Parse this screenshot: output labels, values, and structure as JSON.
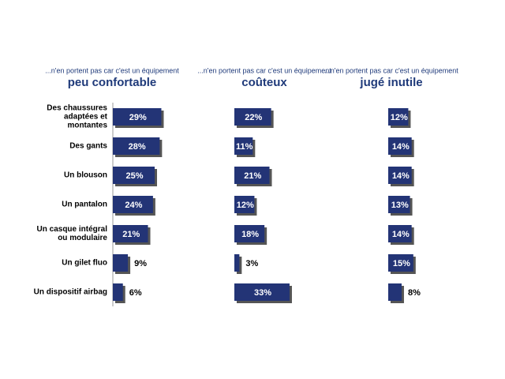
{
  "chart_data": [
    {
      "type": "bar",
      "subtitle": "...n'en portent pas car c'est un équipement",
      "title": "peu confortable",
      "categories": [
        "Des chaussures adaptées et montantes",
        "Des gants",
        "Un blouson",
        "Un pantalon",
        "Un casque intégral ou modulaire",
        "Un gilet fluo",
        "Un dispositif airbag"
      ],
      "values": [
        29,
        28,
        25,
        24,
        21,
        9,
        6
      ],
      "value_labels": [
        "29%",
        "28%",
        "25%",
        "24%",
        "21%",
        "9%",
        "6%"
      ],
      "color": "#233476"
    },
    {
      "type": "bar",
      "subtitle": "...n'en portent pas car c'est un équipement",
      "title": "coûteux",
      "values": [
        22,
        11,
        21,
        12,
        18,
        3,
        33
      ],
      "value_labels": [
        "22%",
        "11%",
        "21%",
        "12%",
        "18%",
        "3%",
        "33%"
      ],
      "color": "#233476"
    },
    {
      "type": "bar",
      "subtitle": "...n'en portent pas car c'est un équipement",
      "title": "jugé inutile",
      "values": [
        12,
        14,
        14,
        13,
        14,
        15,
        8
      ],
      "value_labels": [
        "12%",
        "14%",
        "14%",
        "13%",
        "14%",
        "15%",
        "8%"
      ],
      "color": "#233476"
    }
  ]
}
